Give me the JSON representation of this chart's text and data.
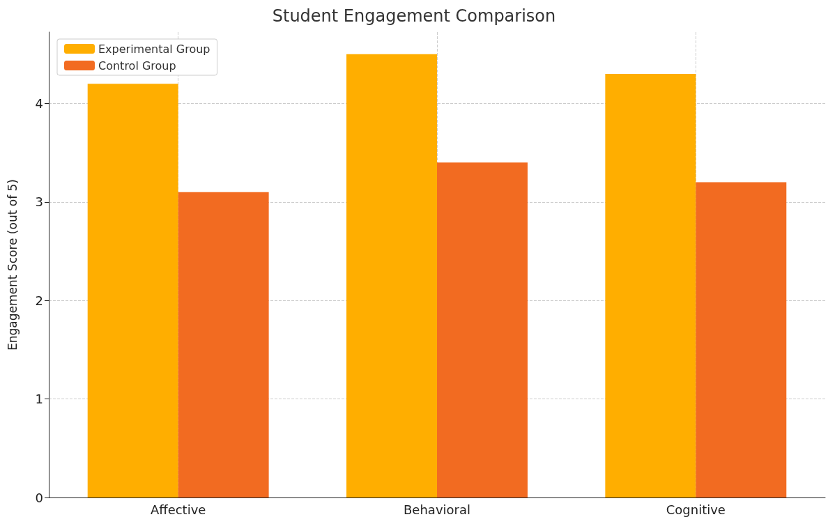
{
  "chart_data": {
    "type": "bar",
    "title": "Student Engagement Comparison",
    "ylabel": "Engagement Score (out of 5)",
    "categories": [
      "Affective",
      "Behavioral",
      "Cognitive"
    ],
    "series": [
      {
        "name": "Experimental Group",
        "color": "#ffae00",
        "values": [
          4.2,
          4.5,
          4.3
        ]
      },
      {
        "name": "Control Group",
        "color": "#f26b21",
        "values": [
          3.1,
          3.4,
          3.2
        ]
      }
    ],
    "ylim": [
      0,
      4.725
    ],
    "yticks": [
      0,
      1,
      2,
      3,
      4
    ],
    "grid": true,
    "legend": "top left"
  }
}
